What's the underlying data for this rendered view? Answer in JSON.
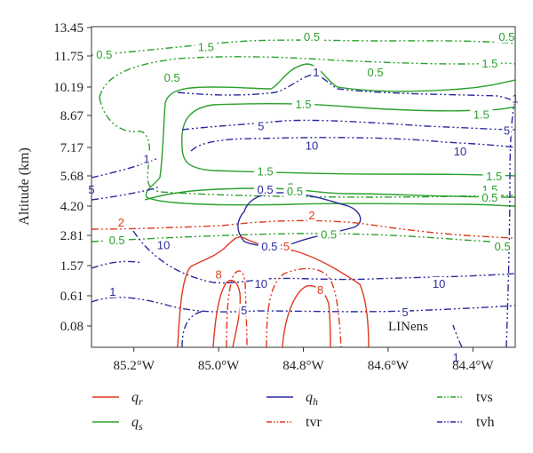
{
  "chart_data": {
    "type": "line",
    "title": "",
    "ylabel": "Altitude (km)",
    "xlabel": "",
    "y_ticks": [
      "13.45",
      "11.75",
      "10.19",
      "8.67",
      "7.17",
      "5.68",
      "4.20",
      "2.81",
      "1.57",
      "0.61",
      "0.08"
    ],
    "x_ticks": [
      "85.2°W",
      "85.0°W",
      "84.8°W",
      "84.6°W",
      "84.4°W"
    ],
    "x_tick_values": [
      -85.2,
      -85.0,
      -84.8,
      -84.6,
      -84.4
    ],
    "xlim": [
      -85.3,
      -84.3
    ],
    "annotation": "LINens",
    "colors": {
      "qr": "#e03a1e",
      "qs": "#2ca02c",
      "qh": "#2b2b9e"
    },
    "legend": [
      {
        "symbol": "q",
        "sub": "r",
        "color": "#e03a1e",
        "style": "solid"
      },
      {
        "symbol": "q",
        "sub": "s",
        "color": "#2ca02c",
        "style": "solid"
      },
      {
        "symbol": "q",
        "sub": "h",
        "color": "#2b2b9e",
        "style": "solid"
      },
      {
        "text": "tvr",
        "color": "#e03a1e",
        "style": "dashdotdot"
      },
      {
        "text": "tvs",
        "color": "#2ca02c",
        "style": "dashdotdot"
      },
      {
        "text": "tvh",
        "color": "#2b2b9e",
        "style": "dashdotdot"
      }
    ],
    "contour_labels": [
      {
        "text": "0.5",
        "color": "#2ca02c",
        "x": -85.27,
        "y": 11.75
      },
      {
        "text": "1.5",
        "color": "#2ca02c",
        "x": -85.03,
        "y": 12.2
      },
      {
        "text": "0.5",
        "color": "#2ca02c",
        "x": -84.78,
        "y": 12.8
      },
      {
        "text": "0.5",
        "color": "#2ca02c",
        "x": -84.32,
        "y": 12.8
      },
      {
        "text": "1.5",
        "color": "#2ca02c",
        "x": -84.36,
        "y": 11.3
      },
      {
        "text": "0.5",
        "color": "#2ca02c",
        "x": -85.11,
        "y": 10.6
      },
      {
        "text": "1",
        "color": "#2b2b9e",
        "x": -84.77,
        "y": 10.85
      },
      {
        "text": "0.5",
        "color": "#2ca02c",
        "x": -84.63,
        "y": 10.85
      },
      {
        "text": "1",
        "color": "#2b2b9e",
        "x": -84.3,
        "y": 9.5
      },
      {
        "text": "1.5",
        "color": "#2ca02c",
        "x": -84.8,
        "y": 9.2
      },
      {
        "text": "1.5",
        "color": "#2ca02c",
        "x": -84.38,
        "y": 8.65
      },
      {
        "text": "5",
        "color": "#2b2b9e",
        "x": -84.9,
        "y": 8.1
      },
      {
        "text": "5",
        "color": "#2b2b9e",
        "x": -84.32,
        "y": 7.9
      },
      {
        "text": "10",
        "color": "#2b2b9e",
        "x": -84.78,
        "y": 7.2
      },
      {
        "text": "10",
        "color": "#2b2b9e",
        "x": -84.43,
        "y": 6.9
      },
      {
        "text": "1",
        "color": "#2b2b9e",
        "x": -85.17,
        "y": 6.5
      },
      {
        "text": "1.5",
        "color": "#2ca02c",
        "x": -84.89,
        "y": 5.85
      },
      {
        "text": "1.5",
        "color": "#2ca02c",
        "x": -84.35,
        "y": 5.6
      },
      {
        "text": "5",
        "color": "#2b2b9e",
        "x": -85.3,
        "y": 4.95
      },
      {
        "text": "0.5",
        "color": "#2b2b9e",
        "x": -84.89,
        "y": 4.95
      },
      {
        "text": "5",
        "color": "#2ca02c",
        "x": -84.83,
        "y": 5.05
      },
      {
        "text": "0.5",
        "color": "#2ca02c",
        "x": -84.82,
        "y": 4.85
      },
      {
        "text": "1.5",
        "color": "#2ca02c",
        "x": -84.36,
        "y": 4.95
      },
      {
        "text": "0.5",
        "color": "#2ca02c",
        "x": -84.36,
        "y": 4.55
      },
      {
        "text": "2",
        "color": "#e03a1e",
        "x": -85.23,
        "y": 3.35
      },
      {
        "text": "2",
        "color": "#e03a1e",
        "x": -84.78,
        "y": 3.7
      },
      {
        "text": "0.5",
        "color": "#2ca02c",
        "x": -85.24,
        "y": 2.55
      },
      {
        "text": "10",
        "color": "#2b2b9e",
        "x": -85.13,
        "y": 2.35
      },
      {
        "text": "0.5",
        "color": "#2b2b9e",
        "x": -84.88,
        "y": 2.3
      },
      {
        "text": "5",
        "color": "#e03a1e",
        "x": -84.84,
        "y": 2.3
      },
      {
        "text": "0.5",
        "color": "#2ca02c",
        "x": -84.74,
        "y": 2.8
      },
      {
        "text": "0.5",
        "color": "#2ca02c",
        "x": -84.33,
        "y": 2.3
      },
      {
        "text": "8",
        "color": "#e03a1e",
        "x": -85.0,
        "y": 1.25
      },
      {
        "text": "10",
        "color": "#2b2b9e",
        "x": -84.9,
        "y": 0.95
      },
      {
        "text": "8",
        "color": "#e03a1e",
        "x": -84.76,
        "y": 0.75
      },
      {
        "text": "10",
        "color": "#2b2b9e",
        "x": -84.48,
        "y": 0.95
      },
      {
        "text": "1",
        "color": "#2b2b9e",
        "x": -85.25,
        "y": 0.7
      },
      {
        "text": "5",
        "color": "#2b2b9e",
        "x": -84.94,
        "y": 0.33
      },
      {
        "text": "5",
        "color": "#2b2b9e",
        "x": -84.56,
        "y": 0.3
      },
      {
        "text": "1",
        "color": "#2b2b9e",
        "x": -84.44,
        "y": -0.5
      }
    ]
  }
}
